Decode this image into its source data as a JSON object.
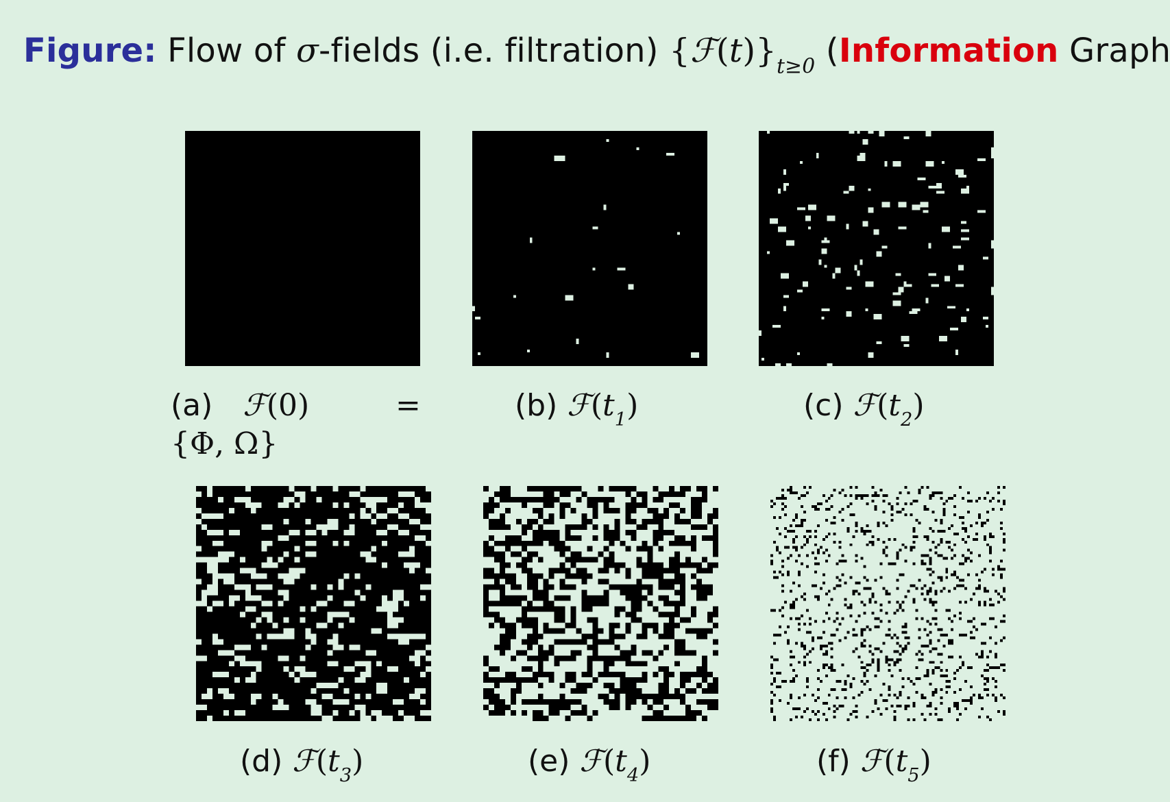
{
  "heading": {
    "label": "Figure:",
    "text1": " Flow of ",
    "sigma": "σ",
    "text2": "-fields (i.e. filtration) ",
    "set_open": "{",
    "F": "ℱ",
    "paren_open": "(",
    "t": "t",
    "paren_close": ")",
    "set_close": "}",
    "subscript": "t≥0",
    "text3": " (",
    "highlight": "Information",
    "text4": " Graphs)"
  },
  "colors": {
    "background": "#ddf0e2",
    "label": "#2b2f9a",
    "highlight": "#d9000d",
    "ink": "#000000"
  },
  "panels": [
    {
      "id": "a",
      "tag": "(a)",
      "F": "ℱ",
      "arg": "(0)",
      "eq": "=",
      "set": "{Φ, Ω}",
      "white_density": 0.0
    },
    {
      "id": "b",
      "tag": "(b)",
      "F": "ℱ",
      "arg_open": "(",
      "t": "t",
      "sub": "1",
      "arg_close": ")",
      "white_density": 0.004
    },
    {
      "id": "c",
      "tag": "(c)",
      "F": "ℱ",
      "arg_open": "(",
      "t": "t",
      "sub": "2",
      "arg_close": ")",
      "white_density": 0.025
    },
    {
      "id": "d",
      "tag": "(d)",
      "F": "ℱ",
      "arg_open": "(",
      "t": "t",
      "sub": "3",
      "arg_close": ")",
      "white_density": 0.18
    },
    {
      "id": "e",
      "tag": "(e)",
      "F": "ℱ",
      "arg_open": "(",
      "t": "t",
      "sub": "4",
      "arg_close": ")",
      "white_density": 0.47
    },
    {
      "id": "f",
      "tag": "(f)",
      "F": "ℱ",
      "arg_open": "(",
      "t": "t",
      "sub": "5",
      "arg_close": ")",
      "white_density": 0.8
    }
  ]
}
